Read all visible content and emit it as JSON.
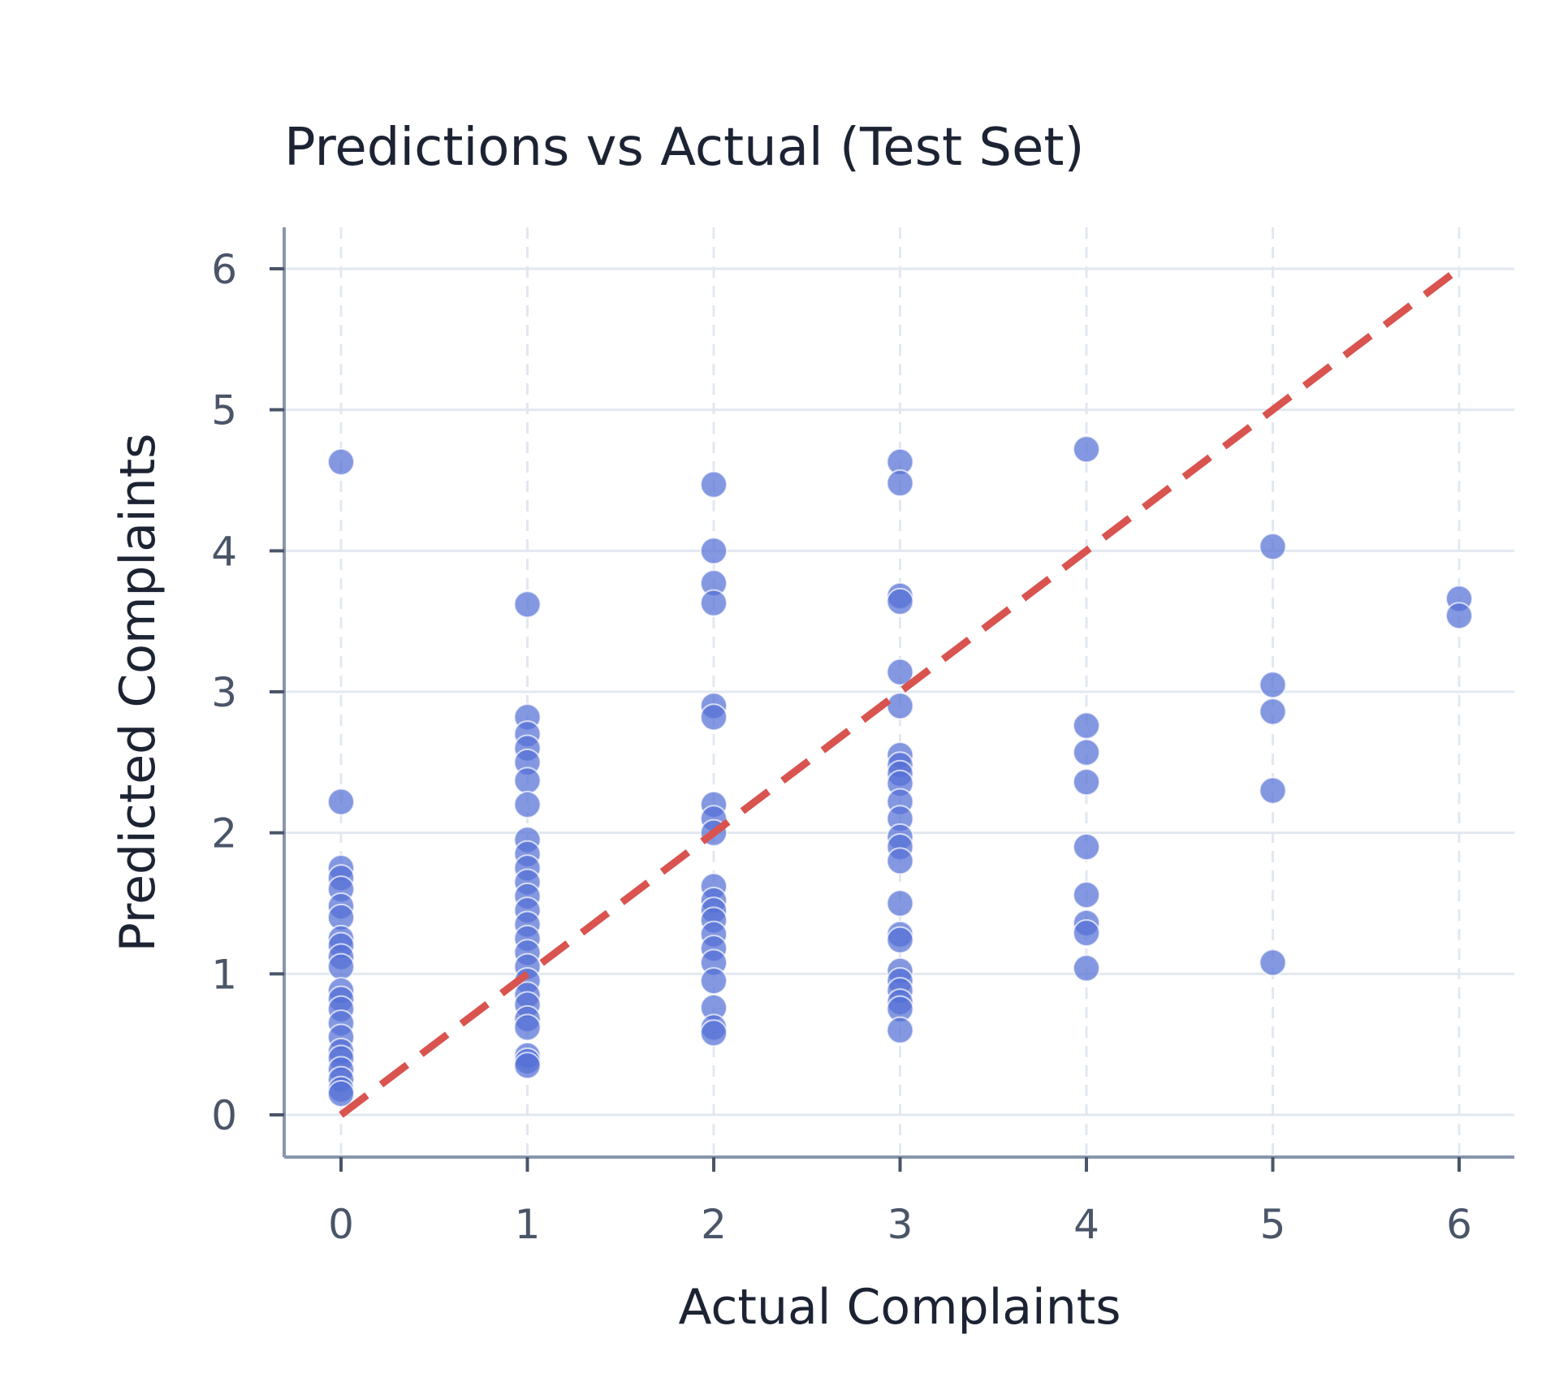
{
  "chart_data": {
    "type": "scatter",
    "title": "Predictions vs Actual (Test Set)",
    "xlabel": "Actual Complaints",
    "ylabel": "Predicted Complaints",
    "xlim": [
      -0.3,
      6.3
    ],
    "ylim": [
      -0.3,
      6.3
    ],
    "x_ticks": [
      "0",
      "1",
      "2",
      "3",
      "4",
      "5",
      "6"
    ],
    "y_ticks": [
      "0",
      "1",
      "2",
      "3",
      "4",
      "5",
      "6"
    ],
    "grid": true,
    "legend": "none",
    "colors": {
      "points": "#5470d6",
      "reference_line": "#d9534f",
      "grid": "#e2e8f0",
      "axis": "#8896ab",
      "text": "#1c2333",
      "tick_text": "#4a5568"
    },
    "reference_line": {
      "from": [
        0,
        0
      ],
      "to": [
        6,
        6
      ],
      "style": "dashed"
    },
    "series": [
      {
        "points": [
          {
            "x": 0,
            "y": 4.63
          },
          {
            "x": 0,
            "y": 2.22
          },
          {
            "x": 0,
            "y": 1.75
          },
          {
            "x": 0,
            "y": 1.68
          },
          {
            "x": 0,
            "y": 1.6
          },
          {
            "x": 0,
            "y": 1.48
          },
          {
            "x": 0,
            "y": 1.4
          },
          {
            "x": 0,
            "y": 1.25
          },
          {
            "x": 0,
            "y": 1.2
          },
          {
            "x": 0,
            "y": 1.12
          },
          {
            "x": 0,
            "y": 1.05
          },
          {
            "x": 0,
            "y": 0.88
          },
          {
            "x": 0,
            "y": 0.82
          },
          {
            "x": 0,
            "y": 0.75
          },
          {
            "x": 0,
            "y": 0.65
          },
          {
            "x": 0,
            "y": 0.55
          },
          {
            "x": 0,
            "y": 0.45
          },
          {
            "x": 0,
            "y": 0.4
          },
          {
            "x": 0,
            "y": 0.32
          },
          {
            "x": 0,
            "y": 0.25
          },
          {
            "x": 0,
            "y": 0.18
          },
          {
            "x": 0,
            "y": 0.15
          },
          {
            "x": 1,
            "y": 3.62
          },
          {
            "x": 1,
            "y": 2.82
          },
          {
            "x": 1,
            "y": 2.7
          },
          {
            "x": 1,
            "y": 2.6
          },
          {
            "x": 1,
            "y": 2.5
          },
          {
            "x": 1,
            "y": 2.37
          },
          {
            "x": 1,
            "y": 2.2
          },
          {
            "x": 1,
            "y": 1.95
          },
          {
            "x": 1,
            "y": 1.85
          },
          {
            "x": 1,
            "y": 1.75
          },
          {
            "x": 1,
            "y": 1.65
          },
          {
            "x": 1,
            "y": 1.55
          },
          {
            "x": 1,
            "y": 1.45
          },
          {
            "x": 1,
            "y": 1.35
          },
          {
            "x": 1,
            "y": 1.25
          },
          {
            "x": 1,
            "y": 1.15
          },
          {
            "x": 1,
            "y": 1.05
          },
          {
            "x": 1,
            "y": 0.95
          },
          {
            "x": 1,
            "y": 0.85
          },
          {
            "x": 1,
            "y": 0.78
          },
          {
            "x": 1,
            "y": 0.68
          },
          {
            "x": 1,
            "y": 0.62
          },
          {
            "x": 1,
            "y": 0.42
          },
          {
            "x": 1,
            "y": 0.38
          },
          {
            "x": 1,
            "y": 0.35
          },
          {
            "x": 2,
            "y": 4.47
          },
          {
            "x": 2,
            "y": 4.0
          },
          {
            "x": 2,
            "y": 3.77
          },
          {
            "x": 2,
            "y": 3.63
          },
          {
            "x": 2,
            "y": 2.9
          },
          {
            "x": 2,
            "y": 2.82
          },
          {
            "x": 2,
            "y": 2.2
          },
          {
            "x": 2,
            "y": 2.1
          },
          {
            "x": 2,
            "y": 2.0
          },
          {
            "x": 2,
            "y": 1.62
          },
          {
            "x": 2,
            "y": 1.52
          },
          {
            "x": 2,
            "y": 1.45
          },
          {
            "x": 2,
            "y": 1.38
          },
          {
            "x": 2,
            "y": 1.28
          },
          {
            "x": 2,
            "y": 1.18
          },
          {
            "x": 2,
            "y": 1.08
          },
          {
            "x": 2,
            "y": 0.95
          },
          {
            "x": 2,
            "y": 0.76
          },
          {
            "x": 2,
            "y": 0.62
          },
          {
            "x": 2,
            "y": 0.58
          },
          {
            "x": 3,
            "y": 4.63
          },
          {
            "x": 3,
            "y": 4.48
          },
          {
            "x": 3,
            "y": 3.68
          },
          {
            "x": 3,
            "y": 3.64
          },
          {
            "x": 3,
            "y": 3.14
          },
          {
            "x": 3,
            "y": 2.9
          },
          {
            "x": 3,
            "y": 2.55
          },
          {
            "x": 3,
            "y": 2.48
          },
          {
            "x": 3,
            "y": 2.42
          },
          {
            "x": 3,
            "y": 2.35
          },
          {
            "x": 3,
            "y": 2.22
          },
          {
            "x": 3,
            "y": 2.1
          },
          {
            "x": 3,
            "y": 1.97
          },
          {
            "x": 3,
            "y": 1.9
          },
          {
            "x": 3,
            "y": 1.8
          },
          {
            "x": 3,
            "y": 1.5
          },
          {
            "x": 3,
            "y": 1.28
          },
          {
            "x": 3,
            "y": 1.24
          },
          {
            "x": 3,
            "y": 1.02
          },
          {
            "x": 3,
            "y": 0.95
          },
          {
            "x": 3,
            "y": 0.88
          },
          {
            "x": 3,
            "y": 0.8
          },
          {
            "x": 3,
            "y": 0.75
          },
          {
            "x": 3,
            "y": 0.6
          },
          {
            "x": 4,
            "y": 4.72
          },
          {
            "x": 4,
            "y": 2.76
          },
          {
            "x": 4,
            "y": 2.57
          },
          {
            "x": 4,
            "y": 2.36
          },
          {
            "x": 4,
            "y": 1.9
          },
          {
            "x": 4,
            "y": 1.56
          },
          {
            "x": 4,
            "y": 1.36
          },
          {
            "x": 4,
            "y": 1.29
          },
          {
            "x": 4,
            "y": 1.04
          },
          {
            "x": 5,
            "y": 4.03
          },
          {
            "x": 5,
            "y": 3.05
          },
          {
            "x": 5,
            "y": 2.86
          },
          {
            "x": 5,
            "y": 2.3
          },
          {
            "x": 5,
            "y": 1.08
          },
          {
            "x": 6,
            "y": 3.66
          },
          {
            "x": 6,
            "y": 3.54
          }
        ]
      }
    ]
  }
}
